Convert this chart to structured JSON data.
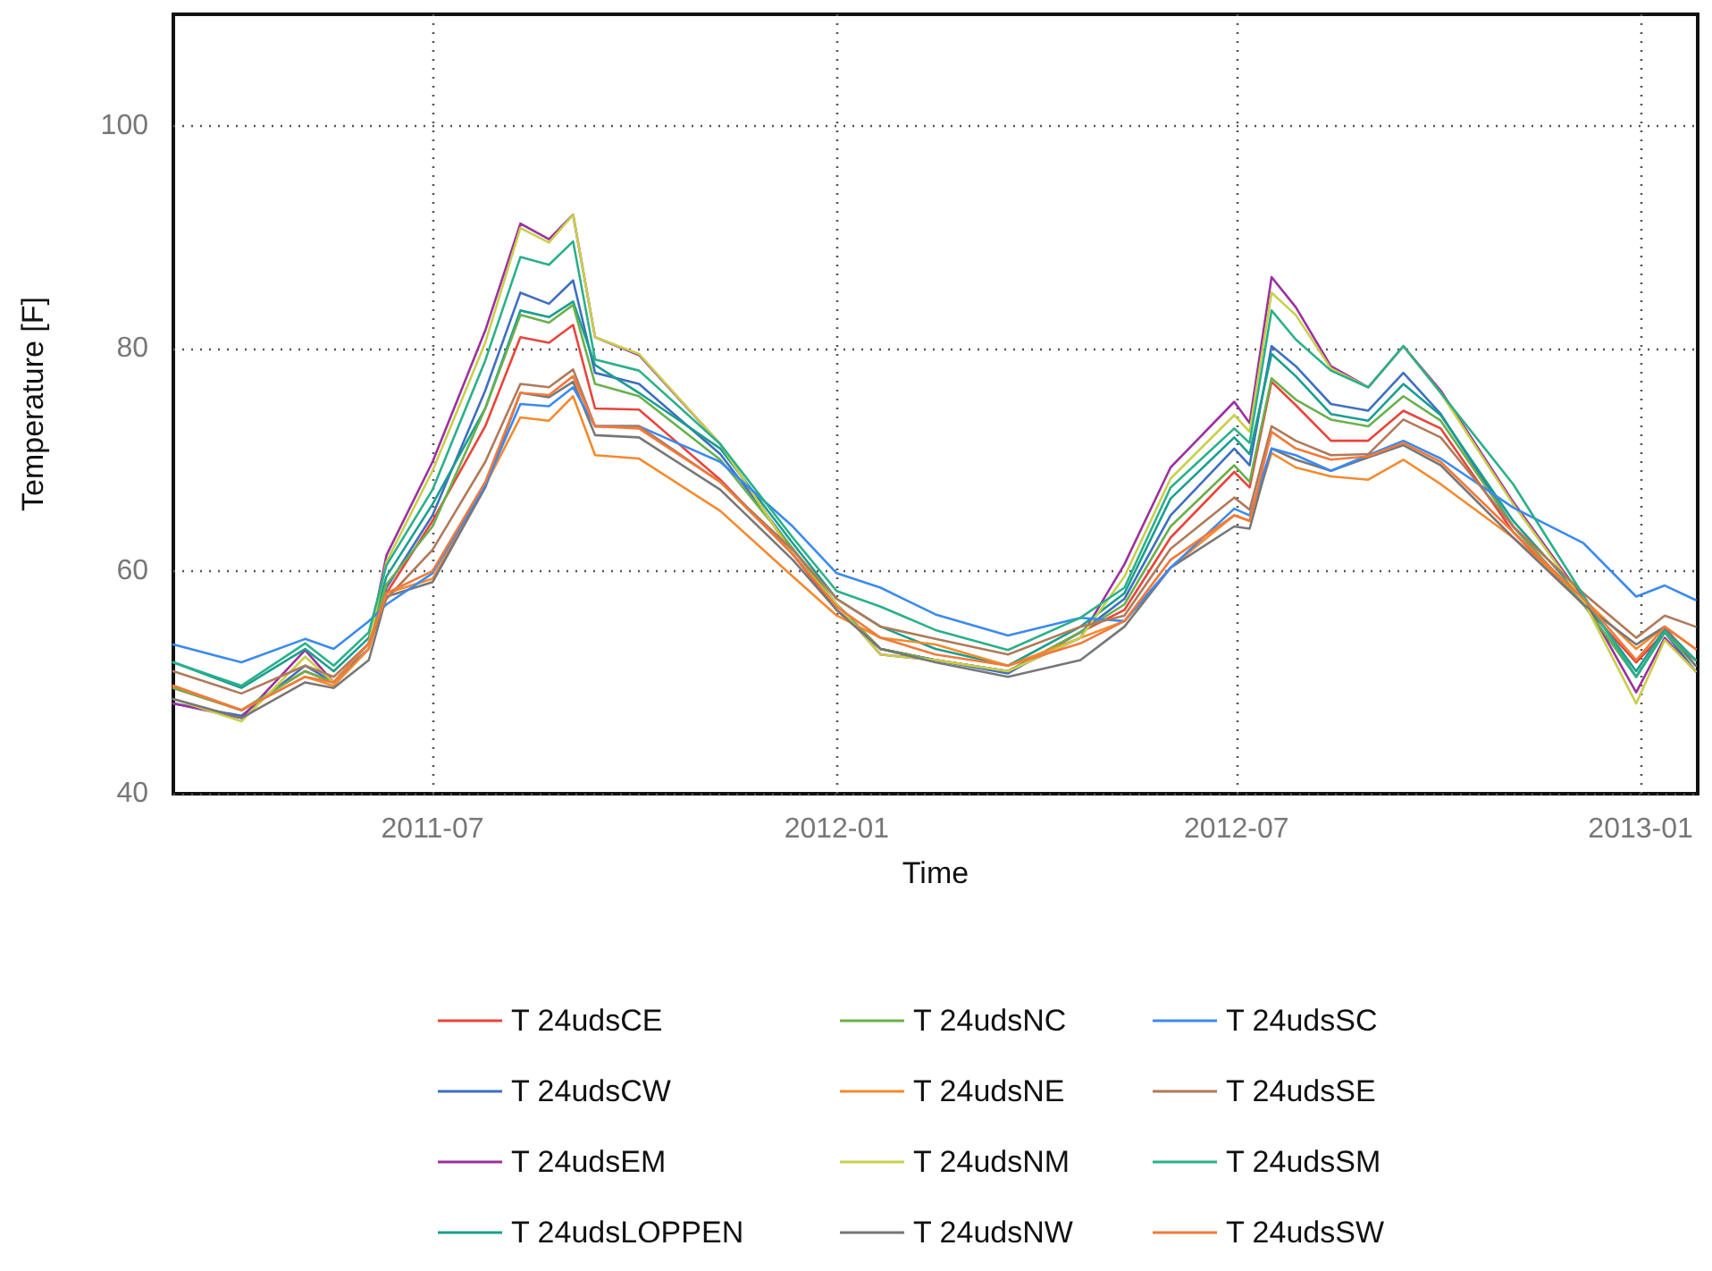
{
  "chart_data": {
    "type": "line",
    "xlabel": "Time",
    "ylabel": "Temperature [F]",
    "x": [
      "2011-03-05",
      "2011-04-05",
      "2011-05-04",
      "2011-05-17",
      "2011-06-02",
      "2011-06-10",
      "2011-07-01",
      "2011-07-25",
      "2011-08-10",
      "2011-08-23",
      "2011-09-03",
      "2011-09-13",
      "2011-10-03",
      "2011-11-09",
      "2011-12-12",
      "2012-01-01",
      "2012-01-21",
      "2012-02-15",
      "2012-03-19",
      "2012-04-21",
      "2012-05-11",
      "2012-06-01",
      "2012-06-30",
      "2012-07-07",
      "2012-07-17",
      "2012-07-28",
      "2012-08-13",
      "2012-08-30",
      "2012-09-15",
      "2012-10-02",
      "2012-11-04",
      "2012-12-06",
      "2012-12-30",
      "2013-01-12",
      "2013-01-26"
    ],
    "xlim": [
      "2011-03-05",
      "2013-01-27"
    ],
    "xticks": [
      {
        "value": "2011-07-01",
        "label": "2011-07"
      },
      {
        "value": "2012-01-01",
        "label": "2012-01"
      },
      {
        "value": "2012-07-01",
        "label": "2012-07"
      },
      {
        "value": "2013-01-01",
        "label": "2013-01"
      }
    ],
    "ylim": [
      40,
      110
    ],
    "yticks": [
      40,
      60,
      80,
      100
    ],
    "grid": true,
    "legend": "bottom",
    "marker": "none",
    "line_style": "solid",
    "series": [
      {
        "name": "T 24udsCE",
        "color": "#e8453c",
        "values": [
          49.5,
          47.5,
          51,
          50,
          53.5,
          58,
          64.5,
          73,
          81,
          80.5,
          82.1,
          74.6,
          74.5,
          68.2,
          61.5,
          56.5,
          53,
          52,
          51,
          54.5,
          56.5,
          63,
          68.9,
          67.5,
          77,
          74.9,
          71.7,
          71.7,
          74.4,
          72.8,
          63.5,
          57,
          51.8,
          54.5,
          52
        ]
      },
      {
        "name": "T 24udsCW",
        "color": "#3f6fbf",
        "values": [
          48.1,
          47,
          51.5,
          50,
          53,
          58.5,
          65,
          76.2,
          85,
          84,
          86.1,
          77.8,
          76.8,
          70.5,
          62,
          57,
          53,
          52,
          50.8,
          54.5,
          57.5,
          65,
          71,
          69.5,
          80.2,
          78.4,
          75,
          74.4,
          77.8,
          74.1,
          64,
          57,
          50.5,
          54.5,
          51
        ]
      },
      {
        "name": "T 24udsEM",
        "color": "#9b30a0",
        "values": [
          48.1,
          46.8,
          52.9,
          50,
          53.5,
          61.4,
          69.8,
          81.6,
          91.2,
          89.8,
          92,
          81,
          79.4,
          71.4,
          61.5,
          57,
          52.5,
          52,
          51,
          54,
          60.6,
          69.3,
          75.2,
          73.3,
          86.4,
          83.7,
          78.4,
          76.5,
          80.2,
          76.2,
          66.2,
          57.5,
          49.1,
          54,
          51
        ]
      },
      {
        "name": "T 24udsLOPPEN",
        "color": "#1a9e8f",
        "values": [
          51.8,
          49.5,
          53,
          51,
          54,
          59.5,
          66,
          74.6,
          83.4,
          82.8,
          84.2,
          78.5,
          76,
          71,
          62.5,
          57.5,
          55,
          53,
          51.5,
          55,
          58,
          66.5,
          72,
          70.5,
          79.5,
          77.5,
          74.1,
          73.5,
          76.8,
          74,
          64.5,
          57.5,
          51,
          54.8,
          52
        ]
      },
      {
        "name": "T 24udsNC",
        "color": "#6ab04c",
        "values": [
          49.5,
          47.5,
          51,
          50,
          53.5,
          58.8,
          64,
          74.6,
          83,
          82.3,
          83.9,
          76.8,
          75.7,
          70,
          62,
          57,
          53,
          52,
          51,
          54.5,
          57,
          64,
          69.5,
          68,
          77.3,
          75.4,
          73.6,
          73,
          75.7,
          73.5,
          64,
          57,
          50.5,
          54.5,
          51.5
        ]
      },
      {
        "name": "T 24udsNE",
        "color": "#f58a2e",
        "values": [
          49.7,
          47.5,
          50.5,
          49.7,
          53,
          58,
          59.3,
          67.7,
          73.8,
          73.5,
          75.7,
          70.4,
          70.1,
          65.4,
          59.5,
          56,
          54,
          53.4,
          51.5,
          54,
          55.5,
          60.3,
          65,
          64.5,
          70.6,
          69.3,
          68.5,
          68.2,
          70,
          67.8,
          63,
          57.5,
          53,
          55,
          53
        ]
      },
      {
        "name": "T 24udsNM",
        "color": "#c9cf4a",
        "values": [
          48.5,
          46.5,
          52.3,
          50,
          53.5,
          60.8,
          69,
          80.5,
          90.8,
          89.5,
          92,
          81,
          79.5,
          71.4,
          61.5,
          57,
          52.5,
          52,
          51,
          54,
          59.5,
          68.3,
          74,
          72.5,
          85,
          83,
          78.2,
          76.5,
          80.2,
          76,
          66,
          57.3,
          48.1,
          53.8,
          51
        ]
      },
      {
        "name": "T 24udsNW",
        "color": "#777777",
        "values": [
          48.5,
          46.8,
          50,
          49.5,
          52,
          57.7,
          59,
          67.5,
          76,
          75.6,
          77,
          72.2,
          72,
          67.3,
          61,
          56.5,
          53,
          51.8,
          50.5,
          52,
          55,
          60.3,
          64,
          63.8,
          71,
          70,
          69,
          70.2,
          71.3,
          69.5,
          63,
          57,
          53.4,
          55,
          51.5
        ]
      },
      {
        "name": "T 24udsSC",
        "color": "#3b8af0",
        "values": [
          53.4,
          51.8,
          53.9,
          53,
          55.5,
          57,
          59.8,
          67.7,
          75,
          74.8,
          76.5,
          73,
          73,
          69.8,
          64,
          59.8,
          58.5,
          56.1,
          54.2,
          55.8,
          55.5,
          60.3,
          65.6,
          65,
          71,
          70.4,
          69,
          70.4,
          71.7,
          70.1,
          65.7,
          62.5,
          57.7,
          58.7,
          57.4
        ]
      },
      {
        "name": "T 24udsSE",
        "color": "#b07a5a",
        "values": [
          51,
          49,
          51.5,
          50.5,
          53.5,
          57.5,
          61.9,
          69.8,
          76.8,
          76.5,
          78.1,
          73,
          73,
          68,
          61.9,
          57.5,
          55,
          53.9,
          52.5,
          55,
          56,
          62,
          66.6,
          65.5,
          73,
          71.7,
          70.4,
          70.5,
          73.6,
          72,
          64,
          58,
          54,
          56,
          55
        ]
      },
      {
        "name": "T 24udsSM",
        "color": "#2ab08a",
        "values": [
          51.8,
          49.7,
          53.5,
          51.5,
          54.5,
          60.5,
          67.3,
          78.9,
          88.2,
          87.5,
          89.6,
          79,
          78,
          71.4,
          63,
          58.2,
          56.8,
          54.7,
          52.9,
          55.8,
          58.5,
          67.5,
          72.8,
          71.5,
          83.4,
          80.8,
          78,
          76.5,
          80.2,
          76,
          67.8,
          57.8,
          50.5,
          54.5,
          52
        ]
      },
      {
        "name": "T 24udsSW",
        "color": "#f07a3c",
        "values": [
          49.7,
          47.5,
          50.5,
          50,
          53.5,
          58,
          60,
          68,
          76,
          75.8,
          77.5,
          73,
          72.8,
          68,
          61.5,
          56.8,
          54,
          52.5,
          51.5,
          53.5,
          55.5,
          61,
          65,
          64.5,
          72.5,
          71,
          70,
          70.3,
          71.5,
          69.8,
          63.5,
          57.5,
          52,
          55,
          53
        ]
      }
    ]
  }
}
